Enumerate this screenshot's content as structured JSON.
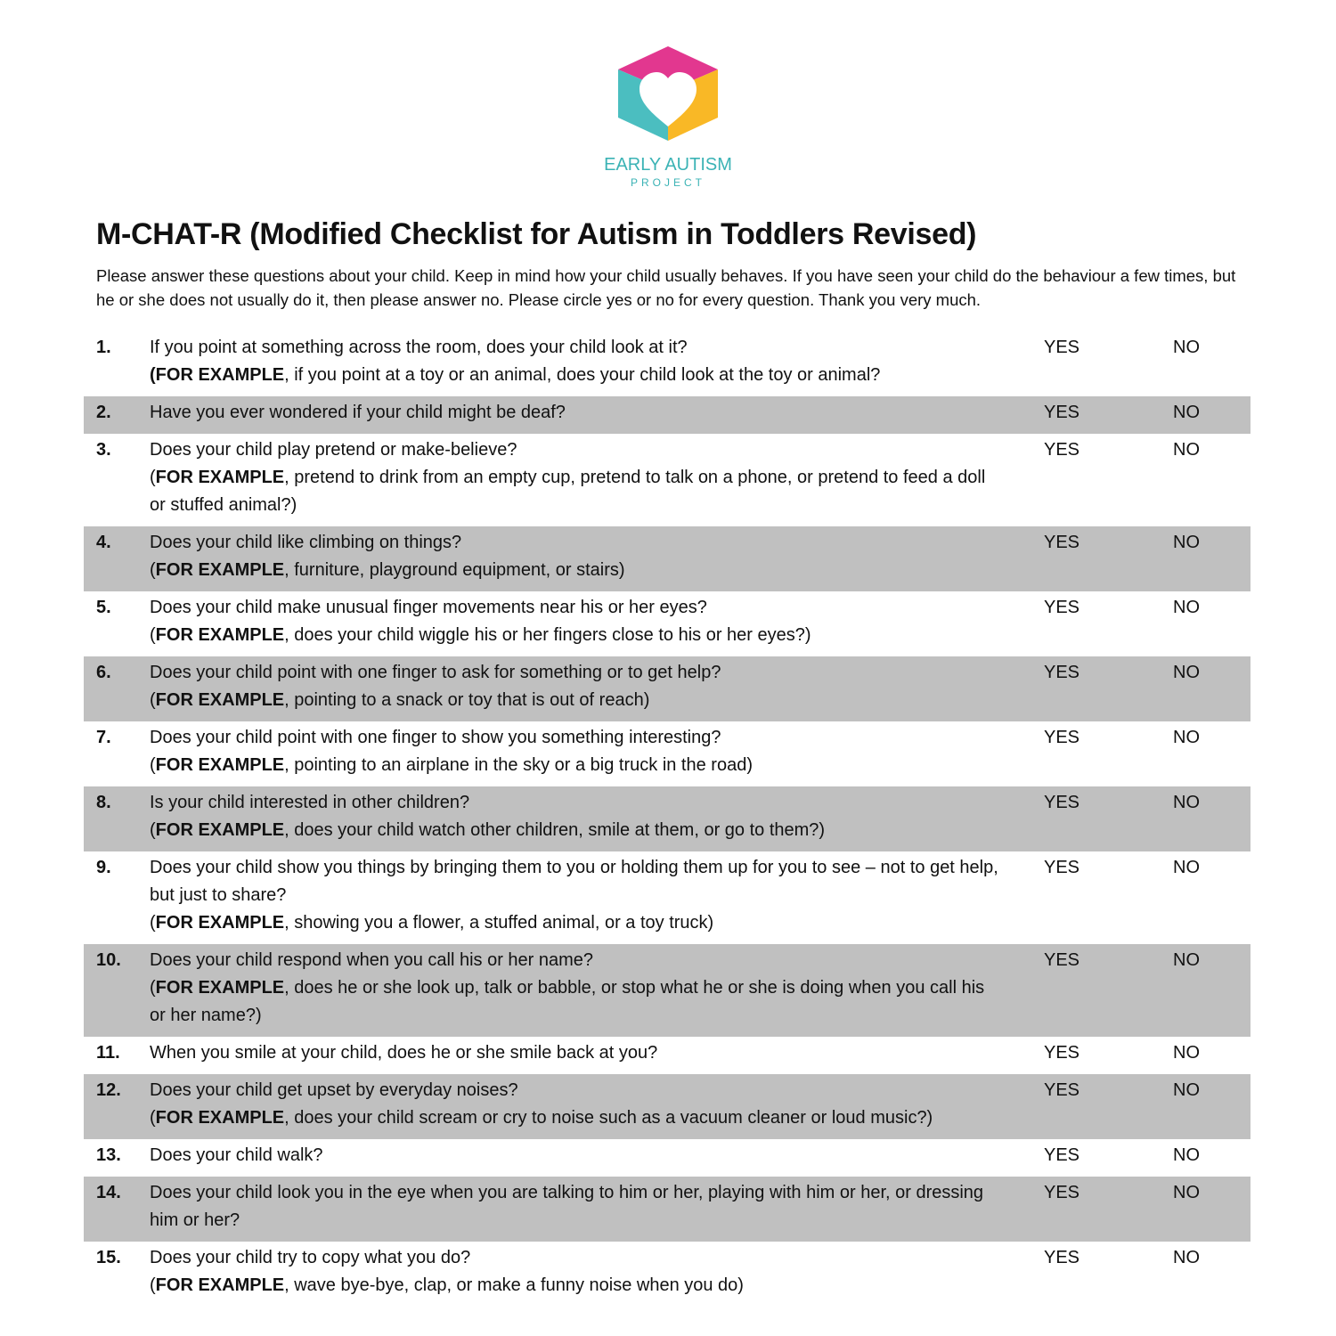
{
  "logo": {
    "line1": "EARLY AUTISM",
    "line2": "PROJECT",
    "colors": {
      "pink": "#e2378f",
      "teal": "#4bbec0",
      "yellow": "#f9b826"
    }
  },
  "title": "M-CHAT-R (Modified Checklist for Autism in Toddlers Revised)",
  "intro": "Please answer these questions about your child. Keep in mind how your child usually behaves. If you have seen your child do the behaviour a few times, but he or she does not usually do it, then please answer no. Please circle yes or no for every question. Thank you very much.",
  "yes_label": "YES",
  "no_label": "NO",
  "example_label": "FOR EXAMPLE",
  "questions": [
    {
      "num": "1.",
      "text": "If you point at something across the room, does your child look at it?",
      "example": ", if you point at a toy or an animal, does your child look at the toy or animal?"
    },
    {
      "num": "2.",
      "text": "Have you ever wondered if your child might be deaf?",
      "example": ""
    },
    {
      "num": "3.",
      "text": "Does your child play pretend or make-believe?",
      "example": ", pretend to drink from an empty cup, pretend to talk on a phone, or pretend to feed a doll or stuffed animal?)"
    },
    {
      "num": "4.",
      "text": "Does your child like climbing on things?",
      "example": ", furniture, playground equipment, or stairs)"
    },
    {
      "num": "5.",
      "text": "Does your child make unusual finger movements near his or her eyes?",
      "example": ", does your child wiggle his or her fingers close to his or her eyes?)"
    },
    {
      "num": "6.",
      "text": "Does your child point with one finger to ask for something or to get help?",
      "example": ", pointing to a snack or toy that is out of reach)"
    },
    {
      "num": "7.",
      "text": "Does your child point with one finger to show you something interesting?",
      "example": ", pointing to an airplane in the sky or a big truck in the road)"
    },
    {
      "num": "8.",
      "text": "Is your child interested in other children?",
      "example": ", does your child watch other children, smile at them, or go to them?)"
    },
    {
      "num": "9.",
      "text": "Does your child show you things by bringing them to you or holding them up for you to see – not to get help, but just to share?",
      "example": ", showing you a flower, a stuffed animal, or a toy truck)"
    },
    {
      "num": "10.",
      "text": "Does your child respond when you call his or her name?",
      "example": ", does he or she look up, talk or babble, or stop what he or she is doing when you call his or her name?)"
    },
    {
      "num": "11.",
      "text": "When you smile at your child, does he or she smile back at you?",
      "example": ""
    },
    {
      "num": "12.",
      "text": "Does your child get upset by everyday noises?",
      "example": ", does your child scream or cry to noise such as a vacuum cleaner or loud music?)"
    },
    {
      "num": "13.",
      "text": "Does your child walk?",
      "example": ""
    },
    {
      "num": "14.",
      "text": "Does your child look you in the eye when you are talking to him or her, playing with him or her, or dressing him or her?",
      "example": ""
    },
    {
      "num": "15.",
      "text": "Does your child try to copy what you do?",
      "example": ", wave bye-bye, clap, or make a funny noise when you do)"
    }
  ]
}
